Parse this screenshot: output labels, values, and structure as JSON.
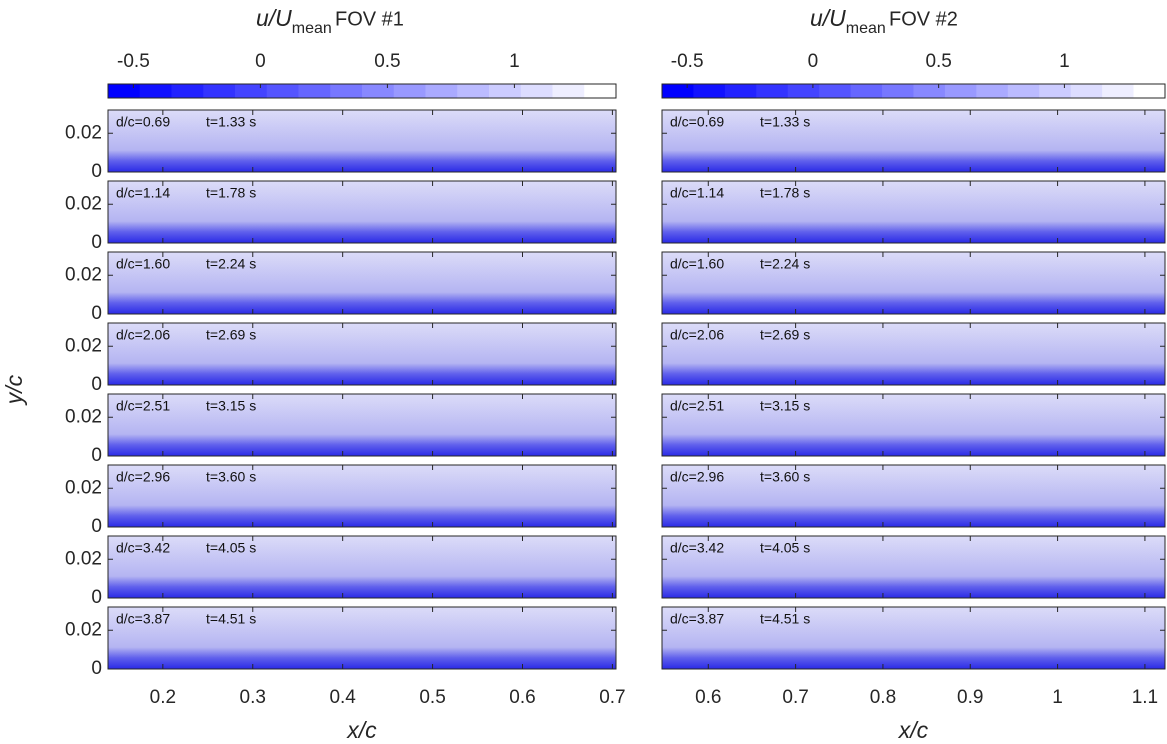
{
  "chart_data": [
    {
      "type": "contour",
      "title": "FOV #1",
      "colorbar_label": {
        "main": "u/U",
        "sub": "mean"
      },
      "colorbar": {
        "lim": [
          -0.6,
          1.4
        ],
        "ticks": [
          -0.5,
          0,
          0.5,
          1
        ],
        "levels": 16,
        "colors": [
          "#0000ff",
          "#ffffff"
        ]
      },
      "xlabel": "x/c",
      "ylabel": "y/c",
      "xlim": [
        0.139,
        0.704
      ],
      "xticks": [
        0.2,
        0.3,
        0.4,
        0.5,
        0.6,
        0.7
      ],
      "ylim": [
        0,
        0.032
      ],
      "yticks": [
        0,
        0.02
      ],
      "show_ytick_labels": true,
      "panels": [
        {
          "d": "d/c=0.69",
          "t": "t=1.33 s"
        },
        {
          "d": "d/c=1.14",
          "t": "t=1.78 s"
        },
        {
          "d": "d/c=1.60",
          "t": "t=2.24 s"
        },
        {
          "d": "d/c=2.06",
          "t": "t=2.69 s"
        },
        {
          "d": "d/c=2.51",
          "t": "t=3.15 s"
        },
        {
          "d": "d/c=2.96",
          "t": "t=3.60 s"
        },
        {
          "d": "d/c=3.42",
          "t": "t=4.05 s"
        },
        {
          "d": "d/c=3.87",
          "t": "t=4.51 s"
        }
      ]
    },
    {
      "type": "contour",
      "title": "FOV #2",
      "colorbar_label": {
        "main": "u/U",
        "sub": "mean"
      },
      "colorbar": {
        "lim": [
          -0.6,
          1.4
        ],
        "ticks": [
          -0.5,
          0,
          0.5,
          1
        ],
        "levels": 16,
        "colors": [
          "#0000ff",
          "#ffffff"
        ]
      },
      "xlabel": "x/c",
      "xlim": [
        0.547,
        1.123
      ],
      "xticks": [
        0.6,
        0.7,
        0.8,
        0.9,
        1,
        1.1
      ],
      "ylim": [
        0,
        0.032
      ],
      "yticks": [
        0,
        0.02
      ],
      "show_ytick_labels": false,
      "panels": [
        {
          "d": "d/c=0.69",
          "t": "t=1.33 s"
        },
        {
          "d": "d/c=1.14",
          "t": "t=1.78 s"
        },
        {
          "d": "d/c=1.60",
          "t": "t=2.24 s"
        },
        {
          "d": "d/c=2.06",
          "t": "t=2.69 s"
        },
        {
          "d": "d/c=2.51",
          "t": "t=3.15 s"
        },
        {
          "d": "d/c=2.96",
          "t": "t=3.60 s"
        },
        {
          "d": "d/c=3.42",
          "t": "t=4.05 s"
        },
        {
          "d": "d/c=3.87",
          "t": "t=4.51 s"
        }
      ]
    }
  ]
}
